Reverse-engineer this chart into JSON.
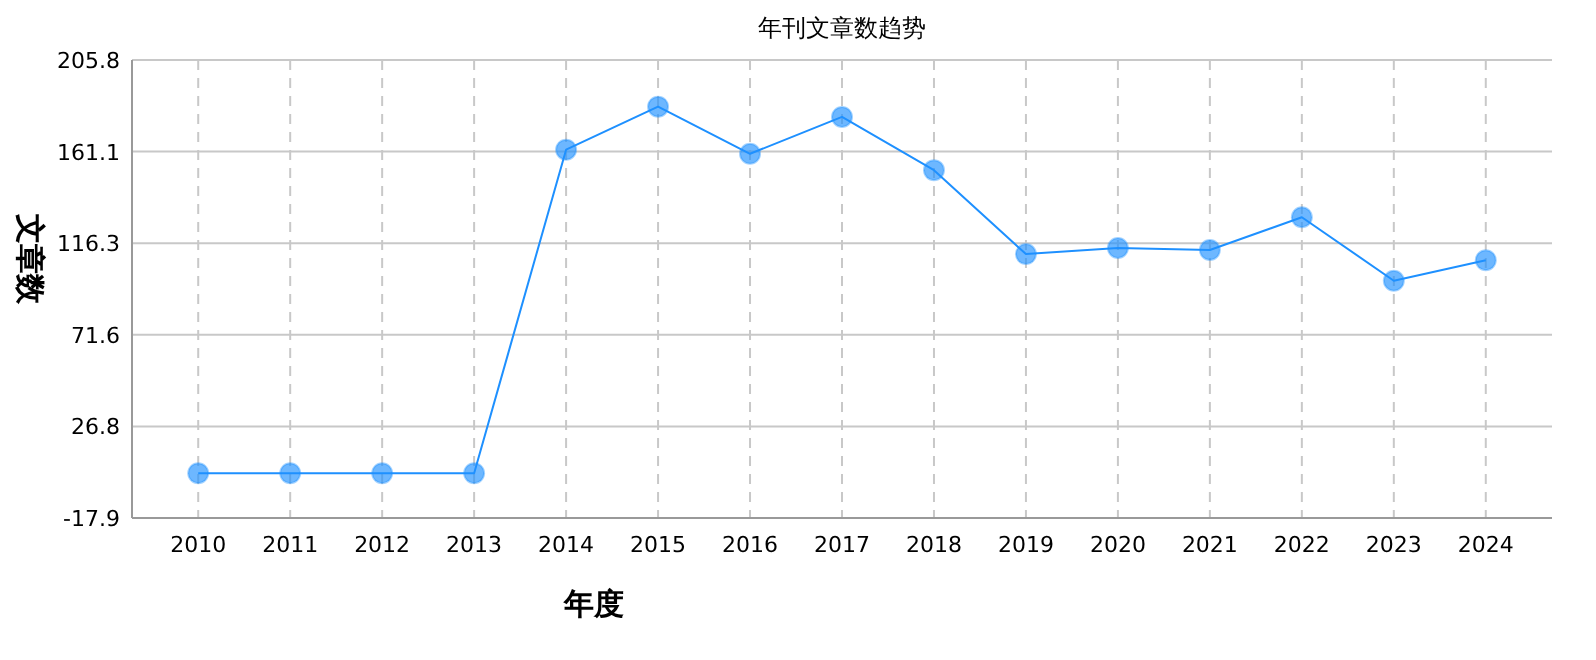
{
  "chart_data": {
    "type": "line",
    "title": "年刊文章数趋势",
    "xlabel": "年度",
    "ylabel": "文章数",
    "categories": [
      "2010",
      "2011",
      "2012",
      "2013",
      "2014",
      "2015",
      "2016",
      "2017",
      "2018",
      "2019",
      "2020",
      "2021",
      "2022",
      "2023",
      "2024"
    ],
    "series": [
      {
        "color": "#1e90ff",
        "values": [
          4,
          4,
          4,
          4,
          162,
          183,
          160,
          178,
          152,
          111,
          114,
          113,
          129,
          98,
          108
        ]
      }
    ],
    "ylim": [
      -17.9,
      205.8
    ],
    "yticks": [
      -17.9,
      26.8,
      71.6,
      116.3,
      161.1,
      205.8
    ],
    "grid": true,
    "marker": "circle",
    "line_style": "solid"
  }
}
